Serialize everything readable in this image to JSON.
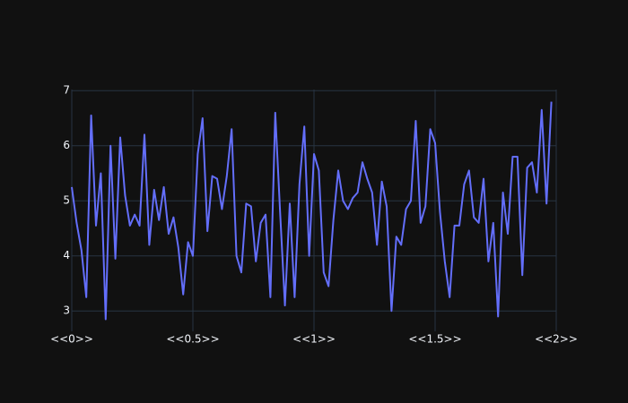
{
  "chart_data": {
    "type": "line",
    "x": [
      0,
      0.02,
      0.04,
      0.06,
      0.08,
      0.1,
      0.12,
      0.14,
      0.16,
      0.18,
      0.2,
      0.22,
      0.24,
      0.26,
      0.28,
      0.3,
      0.32,
      0.34,
      0.36,
      0.38,
      0.4,
      0.42,
      0.44,
      0.46,
      0.48,
      0.5,
      0.52,
      0.54,
      0.56,
      0.58,
      0.6,
      0.62,
      0.64,
      0.66,
      0.68,
      0.7,
      0.72,
      0.74,
      0.76,
      0.78,
      0.8,
      0.82,
      0.84,
      0.86,
      0.88,
      0.9,
      0.92,
      0.94,
      0.96,
      0.98,
      1,
      1.02,
      1.04,
      1.06,
      1.08,
      1.1,
      1.12,
      1.14,
      1.16,
      1.18,
      1.2,
      1.22,
      1.24,
      1.26,
      1.28,
      1.3,
      1.32,
      1.34,
      1.36,
      1.38,
      1.4,
      1.42,
      1.44,
      1.46,
      1.48,
      1.5,
      1.52,
      1.54,
      1.56,
      1.58,
      1.6,
      1.62,
      1.64,
      1.66,
      1.68,
      1.7,
      1.72,
      1.74,
      1.76,
      1.78,
      1.8,
      1.82,
      1.84,
      1.86,
      1.88,
      1.9,
      1.92,
      1.94,
      1.96,
      1.98
    ],
    "series": [
      {
        "color": "#636efa",
        "values": [
          5.25,
          4.6,
          4.1,
          3.25,
          6.55,
          4.55,
          5.5,
          2.85,
          6.0,
          3.95,
          6.15,
          5.1,
          4.55,
          4.75,
          4.55,
          6.2,
          4.2,
          5.2,
          4.65,
          5.25,
          4.4,
          4.7,
          4.15,
          3.3,
          4.25,
          4.0,
          5.85,
          6.5,
          4.45,
          5.45,
          5.4,
          4.85,
          5.45,
          6.3,
          4.0,
          3.7,
          4.95,
          4.9,
          3.9,
          4.6,
          4.75,
          3.25,
          6.6,
          4.8,
          3.1,
          4.95,
          3.25,
          5.3,
          6.35,
          4.0,
          5.85,
          5.55,
          3.7,
          3.45,
          4.65,
          5.55,
          5.0,
          4.85,
          5.05,
          5.15,
          5.7,
          5.4,
          5.15,
          4.2,
          5.35,
          4.9,
          3.0,
          4.35,
          4.2,
          4.85,
          5.0,
          6.45,
          4.6,
          4.9,
          6.3,
          6.05,
          4.8,
          3.9,
          3.25,
          4.55,
          4.55,
          5.3,
          5.55,
          4.7,
          4.6,
          5.4,
          3.9,
          4.6,
          2.9,
          5.15,
          4.4,
          5.8,
          5.8,
          3.65,
          5.6,
          5.7,
          5.15,
          6.65,
          4.95,
          6.8
        ]
      }
    ],
    "xlim": [
      0,
      2
    ],
    "xticks": [
      {
        "value": 0,
        "label": "<<0>>"
      },
      {
        "value": 0.5,
        "label": "<<0.5>>"
      },
      {
        "value": 1,
        "label": "<<1>>"
      },
      {
        "value": 1.5,
        "label": "<<1.5>>"
      },
      {
        "value": 2,
        "label": "<<2>>"
      }
    ],
    "ylim": [
      2.63,
      7.02
    ],
    "yticks": [
      3,
      4,
      5,
      6,
      7
    ],
    "grid": true
  }
}
